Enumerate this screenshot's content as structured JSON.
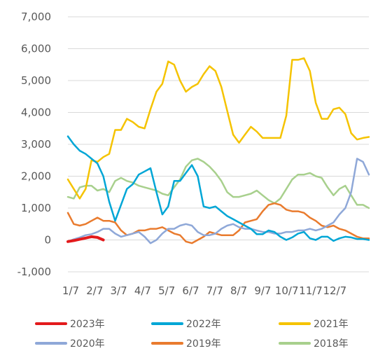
{
  "chart_data": {
    "type": "line",
    "title": "",
    "xlabel": "",
    "ylabel": "",
    "ylim": [
      -1000,
      7000
    ],
    "yticks": [
      "7,000",
      "6,000",
      "5,000",
      "4,000",
      "3,000",
      "2,000",
      "1,000",
      "0",
      "-1,000"
    ],
    "ytick_values": [
      7000,
      6000,
      5000,
      4000,
      3000,
      2000,
      1000,
      0,
      -1000
    ],
    "xticks": [
      "1/7",
      "2/7",
      "3/7",
      "4/7",
      "5/7",
      "6/7",
      "7/7",
      "8/7",
      "9/7",
      "10/7",
      "11/7",
      "12/7"
    ],
    "x_positions": [
      1,
      2,
      3,
      4,
      5,
      6,
      7,
      8,
      9,
      10,
      11,
      12,
      13,
      14,
      15,
      16,
      17,
      18,
      19,
      20,
      21,
      22,
      23,
      24,
      25,
      26,
      27,
      28,
      29,
      30,
      31,
      32,
      33,
      34,
      35,
      36,
      37,
      38,
      39,
      40,
      41,
      42,
      43,
      44,
      45,
      46,
      47,
      48,
      49,
      50,
      51,
      52
    ],
    "grid": "horizontal",
    "legend_position": "bottom",
    "series": [
      {
        "name": "2023年",
        "color": "#e31a1c",
        "values": [
          -50,
          -20,
          20,
          60,
          100,
          80,
          0
        ]
      },
      {
        "name": "2022年",
        "color": "#00a6d6",
        "values": [
          3250,
          3000,
          2800,
          2700,
          2550,
          2400,
          2000,
          1200,
          600,
          1100,
          1600,
          1750,
          2050,
          2150,
          2250,
          1500,
          800,
          1050,
          1850,
          1850,
          2100,
          2350,
          2000,
          1050,
          1000,
          1050,
          900,
          750,
          650,
          550,
          450,
          350,
          180,
          180,
          300,
          250,
          100,
          0,
          80,
          200,
          250,
          50,
          0,
          100,
          100,
          -30,
          50,
          100,
          80,
          30,
          30,
          0
        ]
      },
      {
        "name": "2021年",
        "color": "#f5c300",
        "values": [
          1900,
          1600,
          1300,
          1600,
          2500,
          2450,
          2600,
          2700,
          3450,
          3450,
          3800,
          3700,
          3550,
          3500,
          4100,
          4650,
          4900,
          5600,
          5500,
          5000,
          4650,
          4800,
          4900,
          5200,
          5450,
          5300,
          4800,
          4050,
          3300,
          3050,
          3300,
          3550,
          3400,
          3200,
          3200,
          3200,
          3200,
          3900,
          5650,
          5650,
          5700,
          5300,
          4300,
          3800,
          3800,
          4100,
          4150,
          3950,
          3350,
          3150,
          3200,
          3230
        ]
      },
      {
        "name": "2020年",
        "color": "#8fa8d8",
        "values": [
          -50,
          20,
          80,
          150,
          180,
          250,
          350,
          350,
          200,
          100,
          150,
          200,
          250,
          100,
          -100,
          0,
          200,
          350,
          350,
          450,
          500,
          450,
          250,
          150,
          150,
          200,
          350,
          450,
          500,
          400,
          350,
          350,
          300,
          250,
          250,
          200,
          200,
          250,
          250,
          300,
          300,
          350,
          300,
          350,
          450,
          550,
          800,
          1000,
          1500,
          2550,
          2450,
          2050
        ]
      },
      {
        "name": "2019年",
        "color": "#e97b2e",
        "values": [
          850,
          500,
          450,
          500,
          600,
          700,
          600,
          600,
          550,
          300,
          150,
          200,
          300,
          300,
          350,
          350,
          400,
          300,
          200,
          150,
          -50,
          -100,
          0,
          100,
          250,
          200,
          150,
          150,
          150,
          300,
          550,
          600,
          650,
          900,
          1100,
          1150,
          1100,
          950,
          900,
          900,
          850,
          700,
          600,
          450,
          400,
          450,
          350,
          300,
          200,
          100,
          50,
          50
        ]
      },
      {
        "name": "2018年",
        "color": "#a8d08d",
        "values": [
          1350,
          1300,
          1650,
          1700,
          1700,
          1550,
          1600,
          1500,
          1850,
          1950,
          1850,
          1800,
          1700,
          1650,
          1600,
          1550,
          1450,
          1400,
          1650,
          1900,
          2300,
          2500,
          2550,
          2450,
          2300,
          2100,
          1850,
          1500,
          1350,
          1350,
          1400,
          1450,
          1550,
          1400,
          1250,
          1150,
          1300,
          1600,
          1900,
          2050,
          2050,
          2100,
          2000,
          1950,
          1650,
          1400,
          1600,
          1700,
          1400,
          1100,
          1100,
          1000
        ]
      }
    ]
  }
}
